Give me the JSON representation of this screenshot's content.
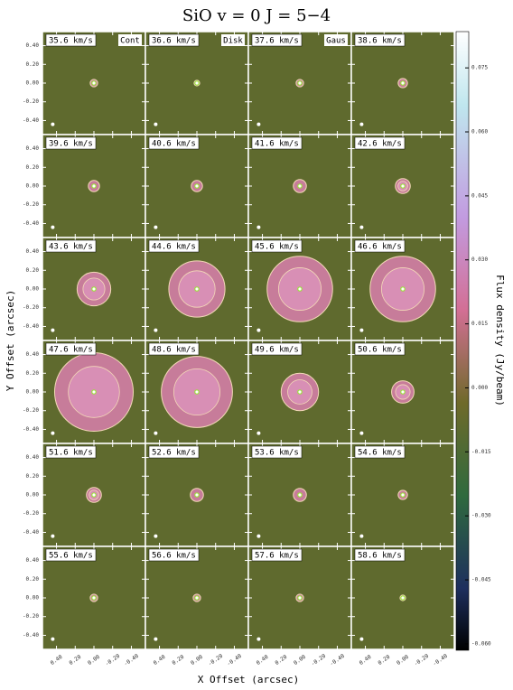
{
  "chart_data": {
    "type": "channel-map",
    "title": "SiO  v = 0  J = 5−4",
    "x_label": "X Offset (arcsec)",
    "y_label": "Y Offset (arcsec)",
    "colorbar_label": "Flux density (Jy/beam)",
    "xlim": [
      0.55,
      -0.55
    ],
    "ylim": [
      -0.55,
      0.55
    ],
    "xticks": [
      {
        "value": 0.4,
        "label": "0.40"
      },
      {
        "value": 0.2,
        "label": "0.20"
      },
      {
        "value": 0,
        "label": "0.00"
      },
      {
        "value": -0.2,
        "label": "-0.20"
      },
      {
        "value": -0.4,
        "label": "-0.40"
      }
    ],
    "yticks": [
      {
        "value": 0.4,
        "label": "0.40"
      },
      {
        "value": 0.2,
        "label": "0.20"
      },
      {
        "value": 0,
        "label": "0.00"
      },
      {
        "value": -0.2,
        "label": "-0.20"
      },
      {
        "value": -0.4,
        "label": "-0.40"
      }
    ],
    "clim": [
      -0.0615,
      0.0835
    ],
    "cticks": [
      {
        "value": 0.075,
        "label": "0.075"
      },
      {
        "value": 0.06,
        "label": "0.060"
      },
      {
        "value": 0.045,
        "label": "0.045"
      },
      {
        "value": 0.03,
        "label": "0.030"
      },
      {
        "value": 0.015,
        "label": "0.015"
      },
      {
        "value": 0,
        "label": "0.000"
      },
      {
        "value": -0.015,
        "label": "-0.015"
      },
      {
        "value": -0.03,
        "label": "-0.030"
      },
      {
        "value": -0.045,
        "label": "-0.045"
      },
      {
        "value": -0.06,
        "label": "-0.060"
      }
    ],
    "columns": 4,
    "panels": [
      {
        "label": "35.6 km/s",
        "radius": 0.04,
        "tag": "Cont",
        "tag_color": "#f0a040"
      },
      {
        "label": "36.6 km/s",
        "radius": 0.03,
        "tag": "Disk",
        "tag_color": "#40c8f0"
      },
      {
        "label": "37.6 km/s",
        "radius": 0.04,
        "tag": "Gaus",
        "tag_color": "#40c8f0"
      },
      {
        "label": "38.6 km/s",
        "radius": 0.05
      },
      {
        "label": "39.6 km/s",
        "radius": 0.06
      },
      {
        "label": "40.6 km/s",
        "radius": 0.06
      },
      {
        "label": "41.6 km/s",
        "radius": 0.07
      },
      {
        "label": "42.6 km/s",
        "radius": 0.08
      },
      {
        "label": "43.6 km/s",
        "radius": 0.18
      },
      {
        "label": "44.6 km/s",
        "radius": 0.3
      },
      {
        "label": "45.6 km/s",
        "radius": 0.35
      },
      {
        "label": "46.6 km/s",
        "radius": 0.35
      },
      {
        "label": "47.6 km/s",
        "radius": 0.42
      },
      {
        "label": "48.6 km/s",
        "radius": 0.38
      },
      {
        "label": "49.6 km/s",
        "radius": 0.2
      },
      {
        "label": "50.6 km/s",
        "radius": 0.12
      },
      {
        "label": "51.6 km/s",
        "radius": 0.08
      },
      {
        "label": "52.6 km/s",
        "radius": 0.07
      },
      {
        "label": "53.6 km/s",
        "radius": 0.07
      },
      {
        "label": "54.6 km/s",
        "radius": 0.05
      },
      {
        "label": "55.6 km/s",
        "radius": 0.04
      },
      {
        "label": "56.6 km/s",
        "radius": 0.04
      },
      {
        "label": "57.6 km/s",
        "radius": 0.04
      },
      {
        "label": "58.6 km/s",
        "radius": 0.03
      }
    ]
  }
}
